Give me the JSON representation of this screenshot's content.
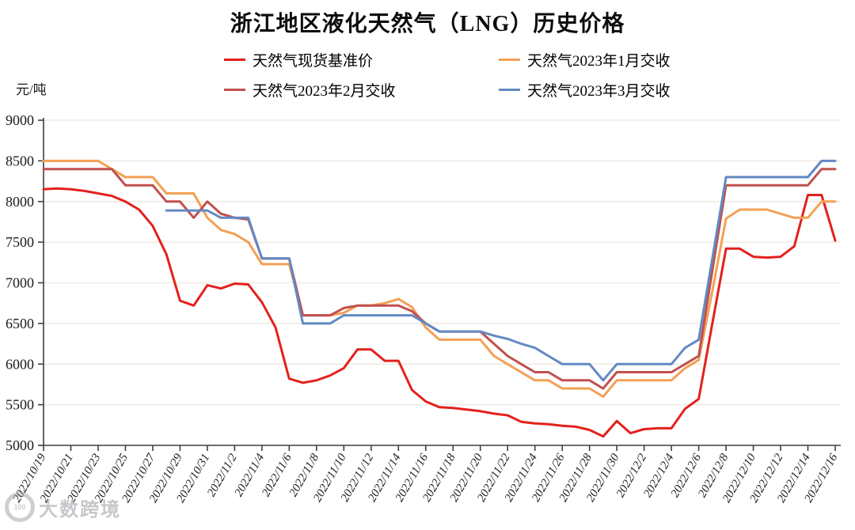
{
  "title": "浙江地区液化天然气（LNG）历史价格",
  "y_axis_unit": "元/吨",
  "watermark": {
    "logo_text": "100",
    "text": "大数跨境"
  },
  "colors": {
    "spot_red": "#e3211c",
    "jan_orange": "#f4a054",
    "feb_brick": "#c0504d",
    "mar_blue": "#6289c3",
    "gridline": "#efeae2",
    "axis": "#3f3f3f"
  },
  "chart_data": {
    "type": "line",
    "title": "浙江地区液化天然气（LNG）历史价格",
    "xlabel": "",
    "ylabel": "元/吨",
    "ylim": [
      5000,
      9000
    ],
    "y_ticks": [
      5000,
      5500,
      6000,
      6500,
      7000,
      7500,
      8000,
      8500,
      9000
    ],
    "x_tick_every": 2,
    "grid": "horizontal",
    "legend_position": "top",
    "x": [
      "2022/10/19",
      "2022/10/20",
      "2022/10/21",
      "2022/10/22",
      "2022/10/23",
      "2022/10/24",
      "2022/10/25",
      "2022/10/26",
      "2022/10/27",
      "2022/10/28",
      "2022/10/29",
      "2022/10/30",
      "2022/10/31",
      "2022/11/1",
      "2022/11/2",
      "2022/11/3",
      "2022/11/4",
      "2022/11/5",
      "2022/11/6",
      "2022/11/7",
      "2022/11/8",
      "2022/11/9",
      "2022/11/10",
      "2022/11/11",
      "2022/11/12",
      "2022/11/13",
      "2022/11/14",
      "2022/11/15",
      "2022/11/16",
      "2022/11/17",
      "2022/11/18",
      "2022/11/19",
      "2022/11/20",
      "2022/11/21",
      "2022/11/22",
      "2022/11/23",
      "2022/11/24",
      "2022/11/25",
      "2022/11/26",
      "2022/11/27",
      "2022/11/28",
      "2022/11/29",
      "2022/11/30",
      "2022/12/1",
      "2022/12/2",
      "2022/12/3",
      "2022/12/4",
      "2022/12/5",
      "2022/12/6",
      "2022/12/7",
      "2022/12/8",
      "2022/12/9",
      "2022/12/10",
      "2022/12/11",
      "2022/12/12",
      "2022/12/13",
      "2022/12/14",
      "2022/12/15",
      "2022/12/16"
    ],
    "series": [
      {
        "name": "天然气现货基准价",
        "color": "#e3211c",
        "values": [
          8150,
          8160,
          8150,
          8130,
          8100,
          8070,
          8000,
          7900,
          7700,
          7350,
          6780,
          6720,
          6970,
          6930,
          6990,
          6980,
          6760,
          6450,
          5820,
          5770,
          5800,
          5860,
          5950,
          6180,
          6180,
          6040,
          6040,
          5680,
          5540,
          5470,
          5460,
          5440,
          5420,
          5390,
          5370,
          5290,
          5270,
          5260,
          5240,
          5230,
          5190,
          5110,
          5300,
          5150,
          5200,
          5210,
          5210,
          5450,
          5570,
          6500,
          7420,
          7420,
          7320,
          7310,
          7320,
          7450,
          8080,
          8080,
          7520
        ]
      },
      {
        "name": "天然气2023年1月交收",
        "color": "#f4a054",
        "values": [
          8500,
          8500,
          8500,
          8500,
          8500,
          8400,
          8300,
          8300,
          8300,
          8100,
          8100,
          8100,
          7800,
          7650,
          7600,
          7500,
          7230,
          7230,
          7230,
          6600,
          6600,
          6600,
          6630,
          6720,
          6720,
          6750,
          6800,
          6700,
          6450,
          6300,
          6300,
          6300,
          6300,
          6100,
          6000,
          5900,
          5800,
          5800,
          5700,
          5700,
          5700,
          5600,
          5800,
          5800,
          5800,
          5800,
          5800,
          5950,
          6050,
          6900,
          7790,
          7900,
          7900,
          7900,
          7850,
          7800,
          7800,
          8000,
          8000
        ]
      },
      {
        "name": "天然气2023年2月交收",
        "color": "#c0504d",
        "values": [
          8400,
          8400,
          8400,
          8400,
          8400,
          8400,
          8200,
          8200,
          8200,
          8000,
          8000,
          7800,
          8000,
          7850,
          7800,
          7780,
          7300,
          7300,
          7300,
          6600,
          6600,
          6600,
          6690,
          6720,
          6720,
          6720,
          6720,
          6650,
          6500,
          6400,
          6400,
          6400,
          6400,
          6250,
          6100,
          6000,
          5900,
          5900,
          5800,
          5800,
          5800,
          5700,
          5900,
          5900,
          5900,
          5900,
          5900,
          6000,
          6100,
          7150,
          8200,
          8200,
          8200,
          8200,
          8200,
          8200,
          8200,
          8400,
          8400
        ]
      },
      {
        "name": "天然气2023年3月交收",
        "color": "#6289c3",
        "values": [
          null,
          null,
          null,
          null,
          null,
          null,
          null,
          null,
          null,
          7890,
          7890,
          7890,
          7890,
          7800,
          7800,
          7800,
          7300,
          7300,
          7300,
          6500,
          6500,
          6500,
          6600,
          6600,
          6600,
          6600,
          6600,
          6600,
          6500,
          6400,
          6400,
          6400,
          6400,
          6350,
          6310,
          6250,
          6200,
          6100,
          6000,
          6000,
          6000,
          5800,
          6000,
          6000,
          6000,
          6000,
          6000,
          6200,
          6300,
          7300,
          8300,
          8300,
          8300,
          8300,
          8300,
          8300,
          8300,
          8500,
          8500
        ]
      }
    ]
  }
}
